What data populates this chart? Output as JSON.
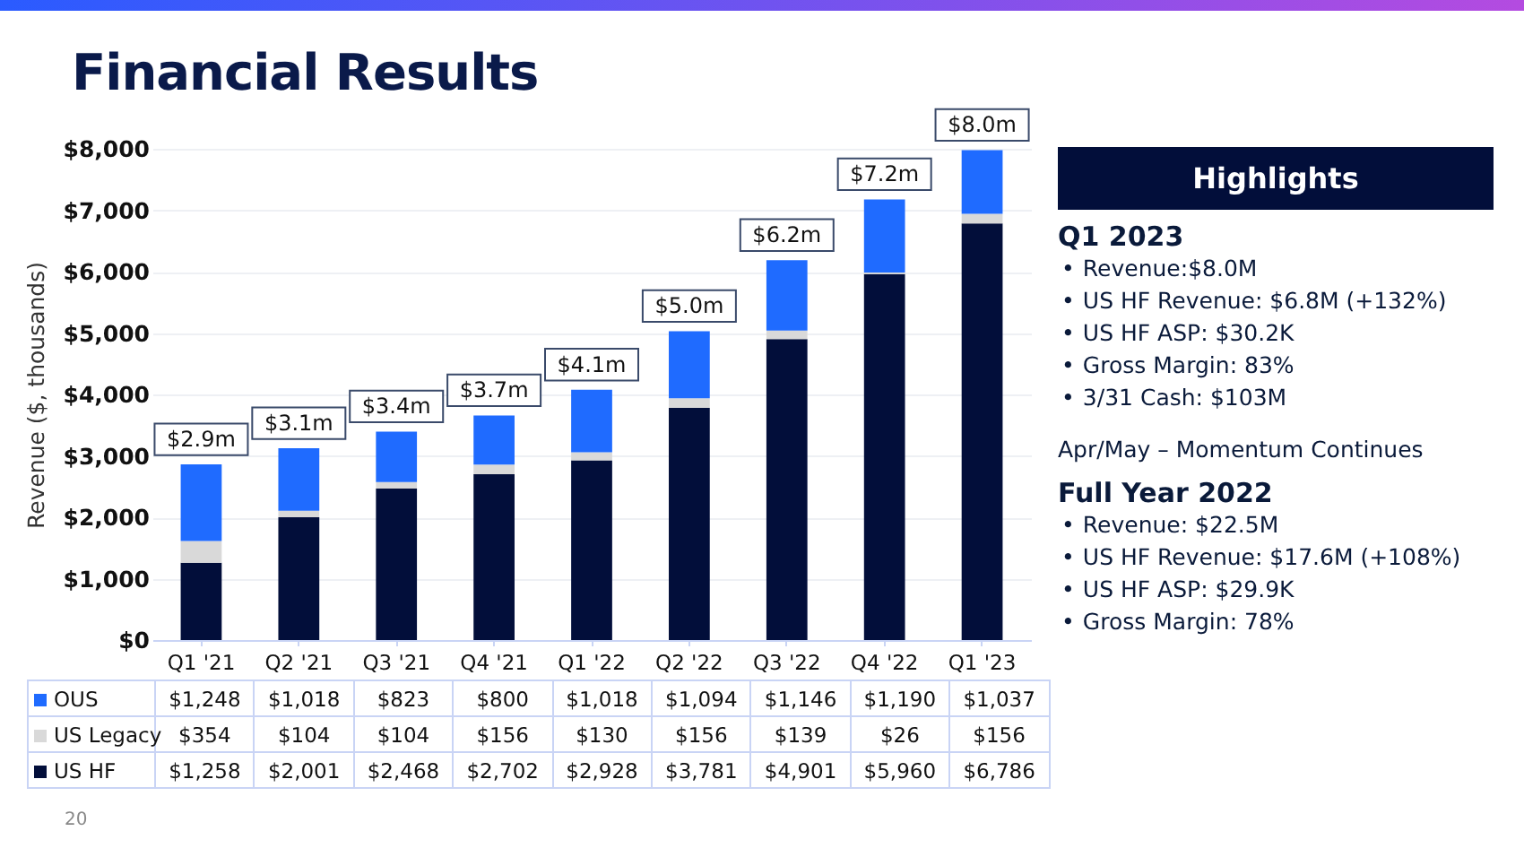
{
  "chart_data": {
    "type": "bar",
    "title": "Financial Results",
    "ylabel": "Revenue ($, thousands)",
    "stacked": true,
    "grid": "y",
    "legend": "bottom left",
    "categories": [
      "Q1 '21",
      "Q2 '21",
      "Q3 '21",
      "Q4 '21",
      "Q1 '22",
      "Q2 '22",
      "Q3 '22",
      "Q4 '22",
      "Q1 '23"
    ],
    "series": [
      {
        "name": "US HF",
        "color": "#020e3a",
        "values": [
          1258,
          2001,
          2468,
          2702,
          2928,
          3781,
          4901,
          5960,
          6786
        ],
        "value_labels": [
          "$1,258",
          "$2,001",
          "$2,468",
          "$2,702",
          "$2,928",
          "$3,781",
          "$4,901",
          "$5,960",
          "$6,786"
        ]
      },
      {
        "name": "US Legacy",
        "color": "#d9d9d9",
        "values": [
          354,
          104,
          104,
          156,
          130,
          156,
          139,
          26,
          156
        ],
        "value_labels": [
          "$354",
          "$104",
          "$104",
          "$156",
          "$130",
          "$156",
          "$139",
          "$26",
          "$156"
        ]
      },
      {
        "name": "OUS",
        "color": "#1f6bff",
        "values": [
          1248,
          1018,
          823,
          800,
          1018,
          1094,
          1146,
          1190,
          1037
        ],
        "value_labels": [
          "$1,248",
          "$1,018",
          "$823",
          "$800",
          "$1,018",
          "$1,094",
          "$1,146",
          "$1,190",
          "$1,037"
        ]
      }
    ],
    "totals": [
      "$2.9m",
      "$3.1m",
      "$3.4m",
      "$3.7m",
      "$4.1m",
      "$5.0m",
      "$6.2m",
      "$7.2m",
      "$8.0m"
    ],
    "ylim": [
      0,
      8000
    ],
    "yticks": [
      {
        "value": 0,
        "label": "$0"
      },
      {
        "value": 1000,
        "label": "$1,000"
      },
      {
        "value": 2000,
        "label": "$2,000"
      },
      {
        "value": 3000,
        "label": "$3,000"
      },
      {
        "value": 4000,
        "label": "$4,000"
      },
      {
        "value": 5000,
        "label": "$5,000"
      },
      {
        "value": 6000,
        "label": "$6,000"
      },
      {
        "value": 7000,
        "label": "$7,000"
      },
      {
        "value": 8000,
        "label": "$8,000"
      }
    ],
    "annotations": [
      "Highlights",
      "Q1 2023",
      "•\tRevenue:$8.0M",
      "•\tUS HF Revenue: $6.8M (+132%)",
      "•\tUS HF ASP: $30.2K",
      "•\tGross Margin: 83%",
      "•\t3/31 Cash: $103M",
      "Apr/May – Momentum Continues",
      "Full Year 2022",
      "•\tRevenue: $22.5M",
      "•\tUS HF Revenue: $17.6M (+108%)",
      "•\tUS HF ASP: $29.9K",
      "•\tGross Margin: 78%",
      "20"
    ]
  }
}
